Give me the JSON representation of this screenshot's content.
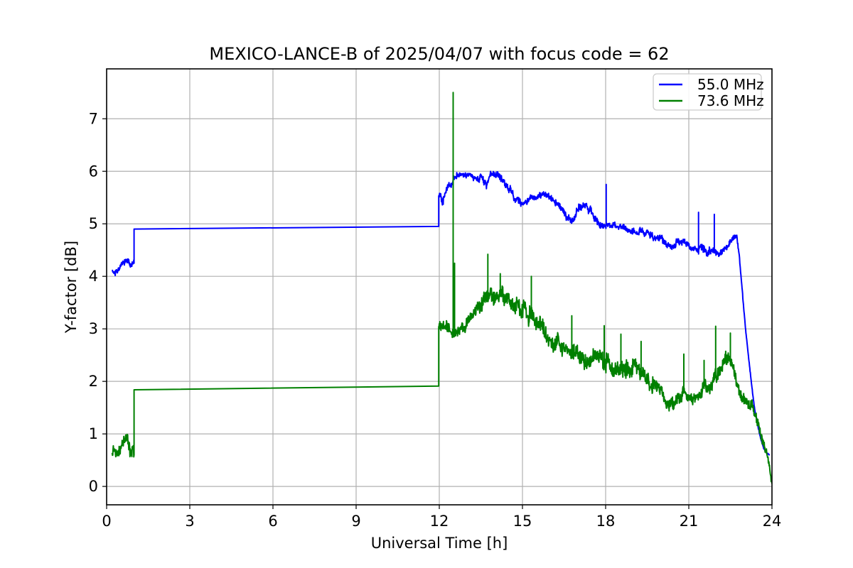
{
  "figure": {
    "background": "#ffffff"
  },
  "chart_data": {
    "type": "line",
    "title": "MEXICO-LANCE-B of 2025/04/07 with focus code = 62",
    "xlabel": "Universal Time [h]",
    "ylabel": "Y-factor [dB]",
    "xlim": [
      0,
      24
    ],
    "ylim": [
      -0.35,
      7.95
    ],
    "xticks": [
      0,
      3,
      6,
      9,
      12,
      15,
      18,
      21,
      24
    ],
    "yticks": [
      0,
      1,
      2,
      3,
      4,
      5,
      6,
      7
    ],
    "grid": true,
    "grid_color": "#b0b0b0",
    "axes_color": "#000000",
    "legend": {
      "position": "upper right",
      "entries": [
        {
          "label": "55.0 MHz",
          "color": "#0000ff"
        },
        {
          "label": "73.6 MHz",
          "color": "#008000"
        }
      ]
    },
    "series_points_format": [
      "hour_UT",
      "y_factor_dB_baseline",
      "noise_amplitude_dB"
    ],
    "series": [
      {
        "name": "55.0 MHz",
        "color": "#0000ff",
        "points": [
          [
            0.2,
            4.15,
            0.09
          ],
          [
            0.35,
            4.1,
            0.09
          ],
          [
            0.5,
            4.2,
            0.08
          ],
          [
            0.65,
            4.27,
            0.07
          ],
          [
            0.8,
            4.26,
            0.09
          ],
          [
            0.92,
            4.2,
            0.1
          ],
          [
            0.99,
            4.25,
            0.08
          ],
          [
            0.99,
            4.9,
            0
          ],
          [
            11.98,
            4.95,
            0
          ],
          [
            11.98,
            5.5,
            0.07
          ],
          [
            12.05,
            5.55,
            0.09
          ],
          [
            12.1,
            5.38,
            0.12
          ],
          [
            12.25,
            5.65,
            0.08
          ],
          [
            12.56,
            5.88,
            0.08
          ],
          [
            12.9,
            5.92,
            0.07
          ],
          [
            13.3,
            5.9,
            0.08
          ],
          [
            13.55,
            5.9,
            0.09
          ],
          [
            13.7,
            5.7,
            0.12
          ],
          [
            13.85,
            5.95,
            0.09
          ],
          [
            14.1,
            5.9,
            0.09
          ],
          [
            14.35,
            5.8,
            0.09
          ],
          [
            14.7,
            5.5,
            0.1
          ],
          [
            15.0,
            5.4,
            0.1
          ],
          [
            15.3,
            5.45,
            0.09
          ],
          [
            15.7,
            5.55,
            0.09
          ],
          [
            16.1,
            5.45,
            0.1
          ],
          [
            16.5,
            5.2,
            0.1
          ],
          [
            16.8,
            5.1,
            0.1
          ],
          [
            17.1,
            5.35,
            0.1
          ],
          [
            17.3,
            5.38,
            0.09
          ],
          [
            17.6,
            5.1,
            0.11
          ],
          [
            17.9,
            5.0,
            0.1
          ],
          [
            18.3,
            4.98,
            0.09
          ],
          [
            18.7,
            4.9,
            0.08
          ],
          [
            19.2,
            4.85,
            0.08
          ],
          [
            19.7,
            4.78,
            0.08
          ],
          [
            20.1,
            4.68,
            0.09
          ],
          [
            20.35,
            4.58,
            0.09
          ],
          [
            20.7,
            4.65,
            0.08
          ],
          [
            21.1,
            4.56,
            0.08
          ],
          [
            21.5,
            4.5,
            0.09
          ],
          [
            21.9,
            4.48,
            0.09
          ],
          [
            22.15,
            4.45,
            0.09
          ],
          [
            22.4,
            4.58,
            0.08
          ],
          [
            22.6,
            4.72,
            0.06
          ],
          [
            22.73,
            4.78,
            0.05
          ],
          [
            22.82,
            4.4,
            0.04
          ],
          [
            22.95,
            3.6,
            0.04
          ],
          [
            23.05,
            3.0,
            0.03
          ],
          [
            23.25,
            2.0,
            0.03
          ],
          [
            23.4,
            1.4,
            0.03
          ],
          [
            23.55,
            1.0,
            0.03
          ],
          [
            23.7,
            0.72,
            0.02
          ],
          [
            23.82,
            0.62,
            0.02
          ],
          [
            23.92,
            0.6,
            0.01
          ]
        ],
        "spikes": [
          [
            18.02,
            5.75
          ],
          [
            21.35,
            5.22
          ],
          [
            21.92,
            5.18
          ]
        ]
      },
      {
        "name": "73.6 MHz",
        "color": "#008000",
        "points": [
          [
            0.2,
            0.7,
            0.16
          ],
          [
            0.4,
            0.68,
            0.14
          ],
          [
            0.6,
            0.82,
            0.14
          ],
          [
            0.75,
            0.92,
            0.12
          ],
          [
            0.85,
            0.72,
            0.18
          ],
          [
            0.95,
            0.65,
            0.22
          ],
          [
            0.99,
            0.6,
            0.15
          ],
          [
            0.99,
            1.84,
            0
          ],
          [
            11.98,
            1.91,
            0
          ],
          [
            11.98,
            3.02,
            0.12
          ],
          [
            12.25,
            3.0,
            0.14
          ],
          [
            12.45,
            2.88,
            0.14
          ],
          [
            12.6,
            3.0,
            0.15
          ],
          [
            12.9,
            3.05,
            0.14
          ],
          [
            13.1,
            3.15,
            0.16
          ],
          [
            13.35,
            3.35,
            0.18
          ],
          [
            13.6,
            3.6,
            0.2
          ],
          [
            13.8,
            3.72,
            0.22
          ],
          [
            14.0,
            3.68,
            0.2
          ],
          [
            14.3,
            3.6,
            0.2
          ],
          [
            14.6,
            3.5,
            0.22
          ],
          [
            14.9,
            3.4,
            0.2
          ],
          [
            15.2,
            3.3,
            0.22
          ],
          [
            15.5,
            3.15,
            0.2
          ],
          [
            15.8,
            2.95,
            0.2
          ],
          [
            16.1,
            2.8,
            0.2
          ],
          [
            16.45,
            2.6,
            0.2
          ],
          [
            16.8,
            2.55,
            0.22
          ],
          [
            17.2,
            2.45,
            0.2
          ],
          [
            17.6,
            2.38,
            0.2
          ],
          [
            17.95,
            2.42,
            0.22
          ],
          [
            18.3,
            2.32,
            0.2
          ],
          [
            18.65,
            2.3,
            0.22
          ],
          [
            19.0,
            2.25,
            0.2
          ],
          [
            19.3,
            2.15,
            0.22
          ],
          [
            19.6,
            1.95,
            0.2
          ],
          [
            20.0,
            1.8,
            0.18
          ],
          [
            20.3,
            1.52,
            0.16
          ],
          [
            20.6,
            1.68,
            0.16
          ],
          [
            20.85,
            1.8,
            0.18
          ],
          [
            21.1,
            1.7,
            0.16
          ],
          [
            21.4,
            1.78,
            0.16
          ],
          [
            21.7,
            1.95,
            0.18
          ],
          [
            21.95,
            2.05,
            0.18
          ],
          [
            22.2,
            2.28,
            0.18
          ],
          [
            22.45,
            2.45,
            0.18
          ],
          [
            22.55,
            2.4,
            0.15
          ],
          [
            22.7,
            2.1,
            0.14
          ],
          [
            22.85,
            1.8,
            0.14
          ],
          [
            23.0,
            1.58,
            0.14
          ],
          [
            23.15,
            1.52,
            0.13
          ],
          [
            23.3,
            1.6,
            0.13
          ],
          [
            23.45,
            1.3,
            0.12
          ],
          [
            23.6,
            1.0,
            0.12
          ],
          [
            23.75,
            0.72,
            0.12
          ],
          [
            23.9,
            0.42,
            0.1
          ],
          [
            24.0,
            0.05,
            0.04
          ]
        ],
        "spikes": [
          [
            12.5,
            7.5
          ],
          [
            12.55,
            4.25
          ],
          [
            13.75,
            4.42
          ],
          [
            14.2,
            4.05
          ],
          [
            15.32,
            4.0
          ],
          [
            16.78,
            3.25
          ],
          [
            17.95,
            3.06
          ],
          [
            18.55,
            2.9
          ],
          [
            19.28,
            2.76
          ],
          [
            20.82,
            2.52
          ],
          [
            21.55,
            2.4
          ],
          [
            21.97,
            3.05
          ],
          [
            22.5,
            2.92
          ]
        ]
      }
    ]
  }
}
